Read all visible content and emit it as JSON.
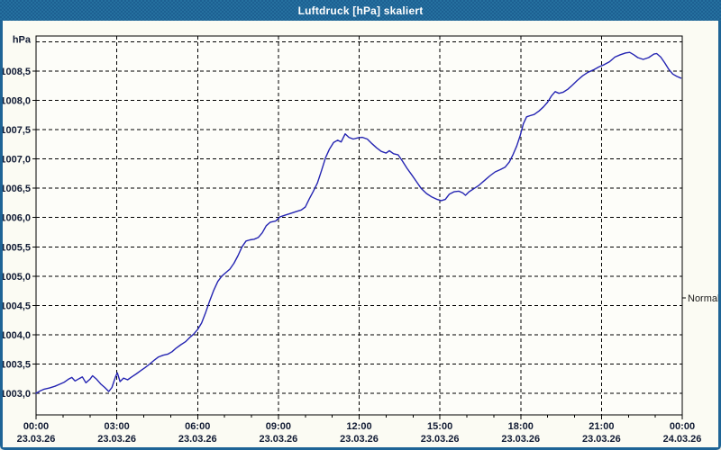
{
  "window": {
    "title": "Luftdruck [hPa] skaliert",
    "title_bar_color": "#1e6496",
    "title_bar_color2": "#25709f",
    "border_color": "#1e6496",
    "body_background": "#fbfbf3",
    "plot_background": "#fdfdf9"
  },
  "chart_data": {
    "type": "line",
    "title": "Luftdruck [hPa] skaliert",
    "ylabel": "hPa",
    "xlabel": "",
    "unit_label": "hPa",
    "line_color": "#2424b2",
    "grid": "dashed-black",
    "axis_text_color": "#101a33",
    "frame_color": "#000000",
    "xlim_hours": [
      0,
      24
    ],
    "ylim": [
      1002.63,
      1009.1
    ],
    "y_gridline_step": 0.5,
    "y_gridlines": [
      1003.0,
      1003.5,
      1004.0,
      1004.5,
      1005.0,
      1005.5,
      1006.0,
      1006.5,
      1007.0,
      1007.5,
      1008.0,
      1008.5,
      1009.0
    ],
    "y_ticks": [
      {
        "value": 1003.0,
        "label": "1003,0"
      },
      {
        "value": 1003.5,
        "label": "1003,5"
      },
      {
        "value": 1004.0,
        "label": "1004,0"
      },
      {
        "value": 1004.5,
        "label": "1004,5"
      },
      {
        "value": 1005.0,
        "label": "1005,0"
      },
      {
        "value": 1005.5,
        "label": "1005,5"
      },
      {
        "value": 1006.0,
        "label": "1006,0"
      },
      {
        "value": 1006.5,
        "label": "1006,5"
      },
      {
        "value": 1007.0,
        "label": "1007,0"
      },
      {
        "value": 1007.5,
        "label": "1007,5"
      },
      {
        "value": 1008.0,
        "label": "1008,0"
      },
      {
        "value": 1008.5,
        "label": "1008,5"
      }
    ],
    "x_ticks": [
      {
        "hour": 0,
        "time": "00:00",
        "date": "23.03.26"
      },
      {
        "hour": 3,
        "time": "03:00",
        "date": "23.03.26"
      },
      {
        "hour": 6,
        "time": "06:00",
        "date": "23.03.26"
      },
      {
        "hour": 9,
        "time": "09:00",
        "date": "23.03.26"
      },
      {
        "hour": 12,
        "time": "12:00",
        "date": "23.03.26"
      },
      {
        "hour": 15,
        "time": "15:00",
        "date": "23.03.26"
      },
      {
        "hour": 18,
        "time": "18:00",
        "date": "23.03.26"
      },
      {
        "hour": 21,
        "time": "21:00",
        "date": "23.03.26"
      },
      {
        "hour": 24,
        "time": "00:00",
        "date": "24.03.26"
      }
    ],
    "x_minor_tick_every_hours": 1,
    "normal_marker": {
      "label": "Normal",
      "value": 1004.63
    },
    "legend": "none",
    "series": [
      {
        "name": "Luftdruck",
        "points": [
          [
            0.0,
            1003.0
          ],
          [
            0.15,
            1003.04
          ],
          [
            0.3,
            1003.07
          ],
          [
            0.5,
            1003.09
          ],
          [
            0.7,
            1003.12
          ],
          [
            0.9,
            1003.16
          ],
          [
            1.05,
            1003.19
          ],
          [
            1.2,
            1003.24
          ],
          [
            1.33,
            1003.27
          ],
          [
            1.45,
            1003.21
          ],
          [
            1.6,
            1003.25
          ],
          [
            1.72,
            1003.28
          ],
          [
            1.85,
            1003.18
          ],
          [
            2.0,
            1003.24
          ],
          [
            2.1,
            1003.3
          ],
          [
            2.25,
            1003.24
          ],
          [
            2.4,
            1003.16
          ],
          [
            2.55,
            1003.1
          ],
          [
            2.7,
            1003.03
          ],
          [
            2.82,
            1003.1
          ],
          [
            2.95,
            1003.28
          ],
          [
            3.02,
            1003.35
          ],
          [
            3.12,
            1003.2
          ],
          [
            3.25,
            1003.26
          ],
          [
            3.4,
            1003.23
          ],
          [
            3.55,
            1003.28
          ],
          [
            3.72,
            1003.33
          ],
          [
            3.9,
            1003.39
          ],
          [
            4.05,
            1003.44
          ],
          [
            4.22,
            1003.5
          ],
          [
            4.4,
            1003.57
          ],
          [
            4.55,
            1003.62
          ],
          [
            4.72,
            1003.65
          ],
          [
            4.9,
            1003.67
          ],
          [
            5.05,
            1003.71
          ],
          [
            5.2,
            1003.77
          ],
          [
            5.38,
            1003.83
          ],
          [
            5.55,
            1003.88
          ],
          [
            5.7,
            1003.95
          ],
          [
            5.85,
            1004.01
          ],
          [
            6.0,
            1004.09
          ],
          [
            6.15,
            1004.2
          ],
          [
            6.3,
            1004.38
          ],
          [
            6.45,
            1004.58
          ],
          [
            6.6,
            1004.76
          ],
          [
            6.75,
            1004.91
          ],
          [
            6.9,
            1005.0
          ],
          [
            7.05,
            1005.06
          ],
          [
            7.2,
            1005.12
          ],
          [
            7.35,
            1005.22
          ],
          [
            7.5,
            1005.35
          ],
          [
            7.65,
            1005.5
          ],
          [
            7.8,
            1005.6
          ],
          [
            7.95,
            1005.62
          ],
          [
            8.1,
            1005.63
          ],
          [
            8.25,
            1005.66
          ],
          [
            8.4,
            1005.74
          ],
          [
            8.55,
            1005.86
          ],
          [
            8.7,
            1005.92
          ],
          [
            8.9,
            1005.94
          ],
          [
            9.05,
            1006.01
          ],
          [
            9.25,
            1006.04
          ],
          [
            9.45,
            1006.07
          ],
          [
            9.65,
            1006.1
          ],
          [
            9.85,
            1006.13
          ],
          [
            10.0,
            1006.18
          ],
          [
            10.15,
            1006.32
          ],
          [
            10.3,
            1006.45
          ],
          [
            10.45,
            1006.59
          ],
          [
            10.6,
            1006.8
          ],
          [
            10.75,
            1007.02
          ],
          [
            10.9,
            1007.17
          ],
          [
            11.05,
            1007.28
          ],
          [
            11.2,
            1007.32
          ],
          [
            11.33,
            1007.29
          ],
          [
            11.48,
            1007.43
          ],
          [
            11.62,
            1007.37
          ],
          [
            11.78,
            1007.34
          ],
          [
            11.95,
            1007.36
          ],
          [
            12.12,
            1007.37
          ],
          [
            12.3,
            1007.34
          ],
          [
            12.48,
            1007.26
          ],
          [
            12.65,
            1007.19
          ],
          [
            12.82,
            1007.13
          ],
          [
            13.0,
            1007.1
          ],
          [
            13.12,
            1007.14
          ],
          [
            13.28,
            1007.09
          ],
          [
            13.45,
            1007.07
          ],
          [
            13.6,
            1006.97
          ],
          [
            13.78,
            1006.84
          ],
          [
            13.95,
            1006.73
          ],
          [
            14.12,
            1006.62
          ],
          [
            14.3,
            1006.5
          ],
          [
            14.5,
            1006.41
          ],
          [
            14.7,
            1006.35
          ],
          [
            14.9,
            1006.31
          ],
          [
            15.05,
            1006.29
          ],
          [
            15.2,
            1006.31
          ],
          [
            15.35,
            1006.4
          ],
          [
            15.52,
            1006.44
          ],
          [
            15.7,
            1006.45
          ],
          [
            15.85,
            1006.42
          ],
          [
            15.95,
            1006.38
          ],
          [
            16.08,
            1006.44
          ],
          [
            16.25,
            1006.49
          ],
          [
            16.45,
            1006.55
          ],
          [
            16.65,
            1006.63
          ],
          [
            16.85,
            1006.71
          ],
          [
            17.05,
            1006.78
          ],
          [
            17.25,
            1006.82
          ],
          [
            17.42,
            1006.86
          ],
          [
            17.58,
            1006.95
          ],
          [
            17.72,
            1007.08
          ],
          [
            17.85,
            1007.22
          ],
          [
            17.98,
            1007.4
          ],
          [
            18.1,
            1007.6
          ],
          [
            18.22,
            1007.72
          ],
          [
            18.35,
            1007.74
          ],
          [
            18.5,
            1007.76
          ],
          [
            18.68,
            1007.82
          ],
          [
            18.85,
            1007.89
          ],
          [
            19.0,
            1007.97
          ],
          [
            19.15,
            1008.08
          ],
          [
            19.28,
            1008.15
          ],
          [
            19.42,
            1008.12
          ],
          [
            19.58,
            1008.14
          ],
          [
            19.75,
            1008.19
          ],
          [
            19.92,
            1008.26
          ],
          [
            20.1,
            1008.34
          ],
          [
            20.3,
            1008.42
          ],
          [
            20.5,
            1008.48
          ],
          [
            20.7,
            1008.52
          ],
          [
            20.9,
            1008.57
          ],
          [
            21.1,
            1008.61
          ],
          [
            21.3,
            1008.66
          ],
          [
            21.5,
            1008.74
          ],
          [
            21.7,
            1008.78
          ],
          [
            21.9,
            1008.81
          ],
          [
            22.05,
            1008.82
          ],
          [
            22.2,
            1008.78
          ],
          [
            22.35,
            1008.73
          ],
          [
            22.55,
            1008.7
          ],
          [
            22.75,
            1008.73
          ],
          [
            22.95,
            1008.79
          ],
          [
            23.05,
            1008.8
          ],
          [
            23.2,
            1008.74
          ],
          [
            23.35,
            1008.64
          ],
          [
            23.5,
            1008.53
          ],
          [
            23.65,
            1008.45
          ],
          [
            23.8,
            1008.41
          ],
          [
            23.95,
            1008.38
          ]
        ]
      }
    ]
  }
}
